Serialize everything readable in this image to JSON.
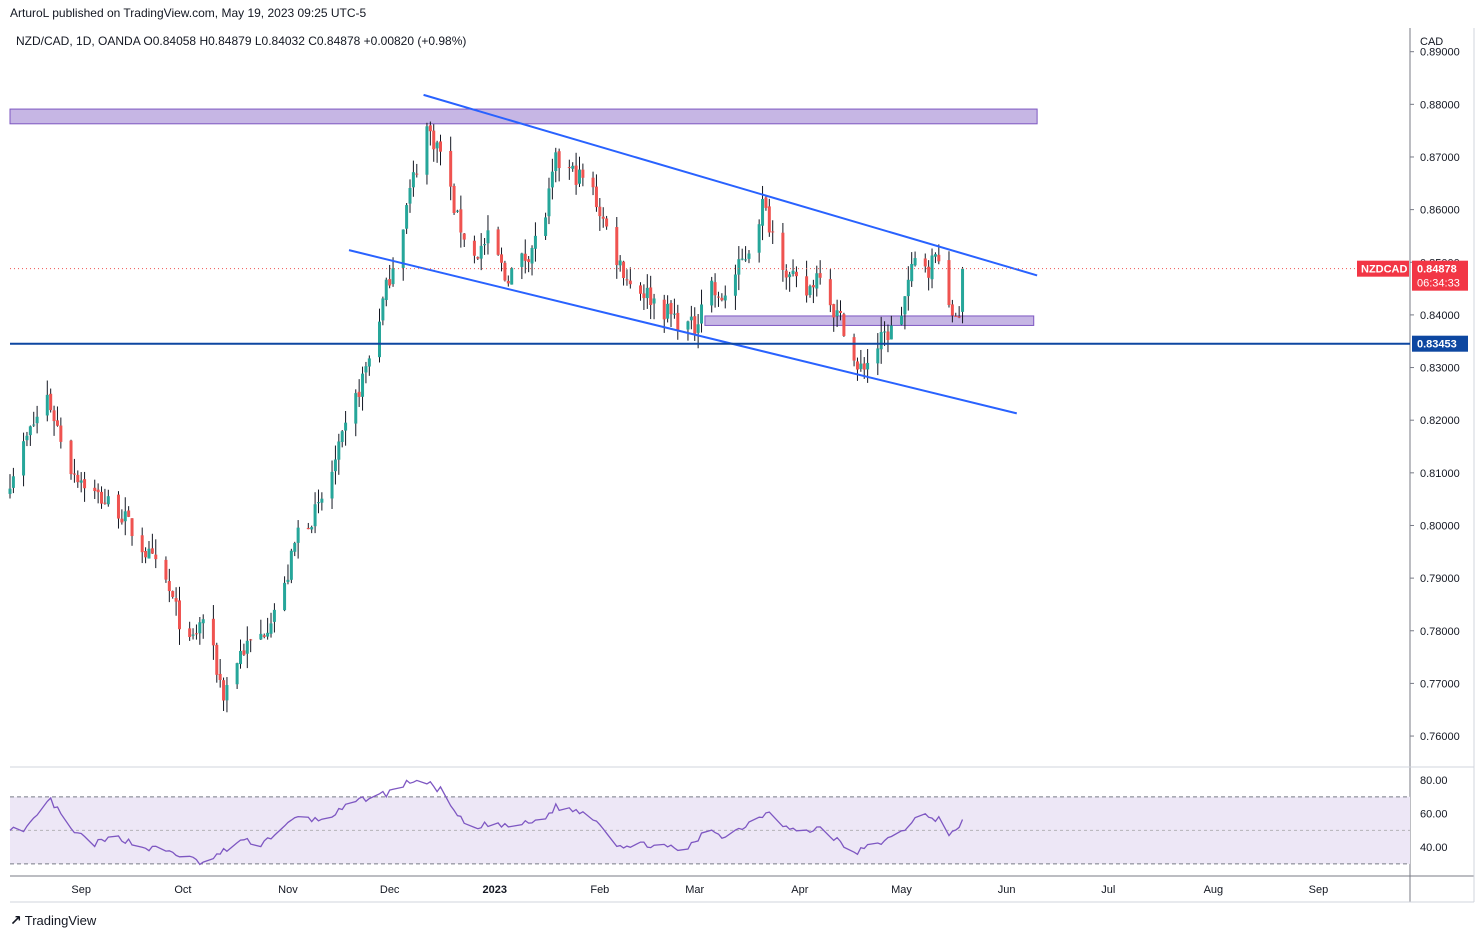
{
  "header": {
    "published": "ArturoL published on TradingView.com, May 19, 2023 09:25 UTC-5"
  },
  "footer": {
    "brand": "TradingView"
  },
  "colors": {
    "up": "#26a69a",
    "down": "#ef5350",
    "trendline": "#2962ff",
    "zone_fill": "#b39ddb",
    "support_line": "#0d47a1",
    "rsi": "#7e57c2",
    "rsi_band": "#ede7f6",
    "badge_red": "#f23645",
    "badge_blue": "#0d47a1"
  },
  "chart_data": {
    "type": "candlestick",
    "symbol_info": {
      "pair": "NZD/CAD",
      "interval": "1D",
      "broker": "OANDA",
      "open": "O0.84058",
      "high": "H0.84879",
      "low": "L0.84032",
      "close": "C0.84878",
      "change": "+0.00820 (+0.98%)"
    },
    "price_axis": {
      "currency": "CAD",
      "ticks": [
        "0.89000",
        "0.88000",
        "0.87000",
        "0.86000",
        "0.85000",
        "0.84000",
        "0.83000",
        "0.82000",
        "0.81000",
        "0.80000",
        "0.79000",
        "0.78000",
        "0.77000",
        "0.76000"
      ],
      "range": [
        0.7545,
        0.8945
      ]
    },
    "time_axis": {
      "labels": [
        "Sep",
        "Oct",
        "Nov",
        "Dec",
        "2023",
        "Feb",
        "Mar",
        "Apr",
        "May",
        "Jun",
        "Jul",
        "Aug",
        "Sep"
      ],
      "start": "2022-08-11",
      "end": "2023-09-28"
    },
    "current_price": {
      "symbol": "NZDCAD",
      "price": "0.84878",
      "countdown": "06:34:33",
      "value": 0.84878
    },
    "support_level": {
      "label": "0.83453",
      "value": 0.83453
    },
    "zones": [
      {
        "x_from": "2022-08-11",
        "x_to": "2023-06-10",
        "y_from": 0.8763,
        "y_to": 0.8791
      },
      {
        "x_from": "2023-03-04",
        "x_to": "2023-06-09",
        "y_from": 0.838,
        "y_to": 0.8398
      }
    ],
    "trendlines": [
      {
        "name": "upper",
        "x1": "2022-12-11",
        "y1": 0.8818,
        "x2": "2023-06-10",
        "y2": 0.8475
      },
      {
        "name": "lower",
        "x1": "2022-11-19",
        "y1": 0.8523,
        "x2": "2023-06-04",
        "y2": 0.8213
      }
    ],
    "price_path": [
      [
        "2022-08-11",
        0.809
      ],
      [
        "2022-08-17",
        0.818
      ],
      [
        "2022-08-22",
        0.8245
      ],
      [
        "2022-08-29",
        0.811
      ],
      [
        "2022-09-05",
        0.806
      ],
      [
        "2022-09-12",
        0.803
      ],
      [
        "2022-09-19",
        0.796
      ],
      [
        "2022-09-26",
        0.789
      ],
      [
        "2022-10-03",
        0.777
      ],
      [
        "2022-10-07",
        0.7825
      ],
      [
        "2022-10-13",
        0.768
      ],
      [
        "2022-10-18",
        0.776
      ],
      [
        "2022-10-24",
        0.779
      ],
      [
        "2022-10-31",
        0.788
      ],
      [
        "2022-11-04",
        0.799
      ],
      [
        "2022-11-10",
        0.803
      ],
      [
        "2022-11-15",
        0.812
      ],
      [
        "2022-11-20",
        0.822
      ],
      [
        "2022-11-25",
        0.832
      ],
      [
        "2022-11-30",
        0.845
      ],
      [
        "2022-12-04",
        0.855
      ],
      [
        "2022-12-08",
        0.866
      ],
      [
        "2022-12-12",
        0.8755
      ],
      [
        "2022-12-16",
        0.871
      ],
      [
        "2022-12-21",
        0.858
      ],
      [
        "2022-12-26",
        0.851
      ],
      [
        "2022-12-31",
        0.855
      ],
      [
        "2023-01-04",
        0.847
      ],
      [
        "2023-01-10",
        0.851
      ],
      [
        "2023-01-15",
        0.856
      ],
      [
        "2023-01-19",
        0.869
      ],
      [
        "2023-01-24",
        0.867
      ],
      [
        "2023-01-29",
        0.865
      ],
      [
        "2023-02-02",
        0.858
      ],
      [
        "2023-02-06",
        0.851
      ],
      [
        "2023-02-10",
        0.846
      ],
      [
        "2023-02-15",
        0.844
      ],
      [
        "2023-02-20",
        0.841
      ],
      [
        "2023-02-25",
        0.8385
      ],
      [
        "2023-03-01",
        0.8375
      ],
      [
        "2023-03-05",
        0.848
      ],
      [
        "2023-03-08",
        0.842
      ],
      [
        "2023-03-13",
        0.8475
      ],
      [
        "2023-03-18",
        0.854
      ],
      [
        "2023-03-21",
        0.861
      ],
      [
        "2023-03-25",
        0.854
      ],
      [
        "2023-03-29",
        0.847
      ],
      [
        "2023-04-03",
        0.844
      ],
      [
        "2023-04-07",
        0.849
      ],
      [
        "2023-04-11",
        0.841
      ],
      [
        "2023-04-14",
        0.838
      ],
      [
        "2023-04-18",
        0.829
      ],
      [
        "2023-04-22",
        0.832
      ],
      [
        "2023-04-26",
        0.836
      ],
      [
        "2023-04-30",
        0.838
      ],
      [
        "2023-05-03",
        0.846
      ],
      [
        "2023-05-06",
        0.852
      ],
      [
        "2023-05-09",
        0.849
      ],
      [
        "2023-05-12",
        0.852
      ],
      [
        "2023-05-15",
        0.84
      ],
      [
        "2023-05-18",
        0.8406
      ],
      [
        "2023-05-19",
        0.8488
      ]
    ],
    "rsi": {
      "ticks": [
        "80.00",
        "60.00",
        "40.00"
      ],
      "range": [
        24,
        86
      ],
      "upper_band": 70,
      "middle": 50,
      "lower_band": 30,
      "path": [
        [
          "2022-08-11",
          52
        ],
        [
          "2022-08-15",
          48
        ],
        [
          "2022-08-21",
          64
        ],
        [
          "2022-08-23",
          68
        ],
        [
          "2022-08-29",
          50
        ],
        [
          "2022-09-05",
          42
        ],
        [
          "2022-09-12",
          46
        ],
        [
          "2022-09-19",
          40
        ],
        [
          "2022-09-26",
          38
        ],
        [
          "2022-10-02",
          34
        ],
        [
          "2022-10-07",
          30
        ],
        [
          "2022-10-12",
          36
        ],
        [
          "2022-10-18",
          44
        ],
        [
          "2022-10-24",
          42
        ],
        [
          "2022-10-31",
          52
        ],
        [
          "2022-11-04",
          58
        ],
        [
          "2022-11-10",
          56
        ],
        [
          "2022-11-15",
          60
        ],
        [
          "2022-11-20",
          66
        ],
        [
          "2022-11-25",
          70
        ],
        [
          "2022-11-30",
          72
        ],
        [
          "2022-12-04",
          76
        ],
        [
          "2022-12-08",
          80
        ],
        [
          "2022-12-12",
          78
        ],
        [
          "2022-12-16",
          74
        ],
        [
          "2022-12-21",
          58
        ],
        [
          "2022-12-26",
          50
        ],
        [
          "2022-12-31",
          55
        ],
        [
          "2023-01-04",
          52
        ],
        [
          "2023-01-10",
          54
        ],
        [
          "2023-01-15",
          56
        ],
        [
          "2023-01-19",
          64
        ],
        [
          "2023-01-24",
          62
        ],
        [
          "2023-01-29",
          60
        ],
        [
          "2023-02-02",
          52
        ],
        [
          "2023-02-06",
          42
        ],
        [
          "2023-02-10",
          40
        ],
        [
          "2023-02-15",
          42
        ],
        [
          "2023-02-20",
          40
        ],
        [
          "2023-02-25",
          38
        ],
        [
          "2023-03-01",
          42
        ],
        [
          "2023-03-05",
          52
        ],
        [
          "2023-03-10",
          46
        ],
        [
          "2023-03-15",
          52
        ],
        [
          "2023-03-20",
          58
        ],
        [
          "2023-03-23",
          62
        ],
        [
          "2023-03-28",
          52
        ],
        [
          "2023-04-02",
          48
        ],
        [
          "2023-04-07",
          52
        ],
        [
          "2023-04-12",
          44
        ],
        [
          "2023-04-17",
          36
        ],
        [
          "2023-04-21",
          40
        ],
        [
          "2023-04-26",
          44
        ],
        [
          "2023-04-30",
          46
        ],
        [
          "2023-05-04",
          56
        ],
        [
          "2023-05-07",
          60
        ],
        [
          "2023-05-10",
          56
        ],
        [
          "2023-05-13",
          60
        ],
        [
          "2023-05-15",
          48
        ],
        [
          "2023-05-18",
          50
        ],
        [
          "2023-05-19",
          58
        ]
      ]
    }
  }
}
